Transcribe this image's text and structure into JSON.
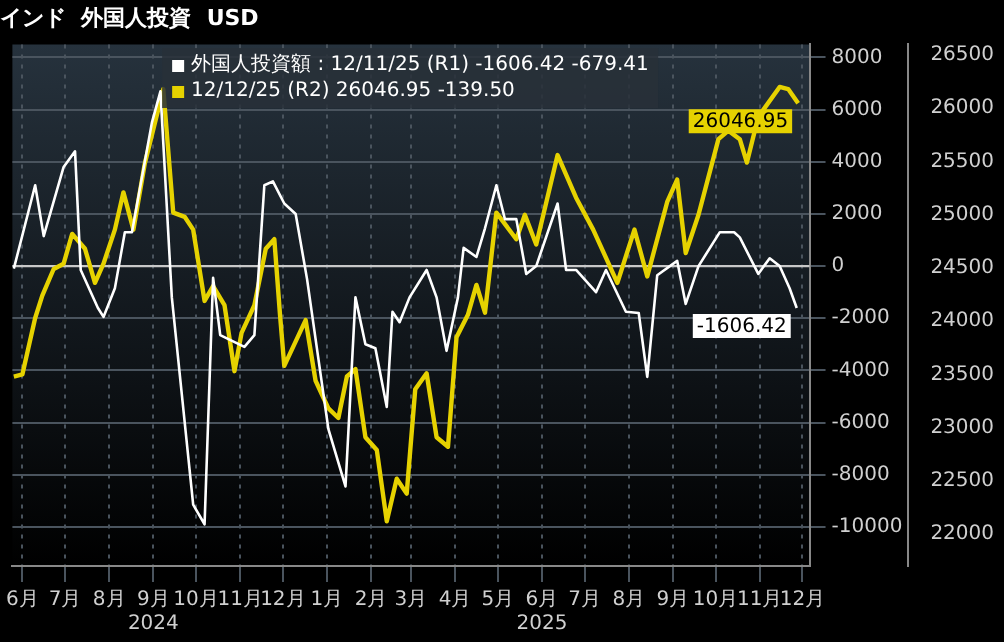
{
  "chart_data": {
    "type": "line",
    "title": "インド  外国人投資  USD",
    "xlim": [
      "2024-06-08",
      "2025-12-20"
    ],
    "xticks": [
      {
        "value": "2024-06-15",
        "label": "6月"
      },
      {
        "value": "2024-07-15",
        "label": "7月"
      },
      {
        "value": "2024-08-15",
        "label": "8月"
      },
      {
        "value": "2024-09-15",
        "label": "9月\n2024"
      },
      {
        "value": "2024-10-15",
        "label": "10月"
      },
      {
        "value": "2024-11-15",
        "label": "11月"
      },
      {
        "value": "2024-12-15",
        "label": "12月"
      },
      {
        "value": "2025-01-15",
        "label": "1月"
      },
      {
        "value": "2025-02-15",
        "label": "2月"
      },
      {
        "value": "2025-03-15",
        "label": "3月"
      },
      {
        "value": "2025-04-15",
        "label": "4月"
      },
      {
        "value": "2025-05-15",
        "label": "5月"
      },
      {
        "value": "2025-06-15",
        "label": "6月\n2025"
      },
      {
        "value": "2025-07-15",
        "label": "7月"
      },
      {
        "value": "2025-08-15",
        "label": "8月"
      },
      {
        "value": "2025-09-15",
        "label": "9月"
      },
      {
        "value": "2025-10-15",
        "label": "10月"
      },
      {
        "value": "2025-11-15",
        "label": "11月"
      },
      {
        "value": "2025-12-15",
        "label": "12月"
      }
    ],
    "ylim": [
      -11500,
      8500
    ],
    "yticks": [
      -10000,
      -8000,
      -6000,
      -4000,
      -2000,
      0,
      2000,
      4000,
      6000,
      8000
    ],
    "y2lim": [
      21700,
      26600
    ],
    "y2ticks": [
      22000,
      22500,
      23000,
      23500,
      24000,
      24500,
      25000,
      25500,
      26000,
      26500
    ],
    "grid": true,
    "legend": "top",
    "ref_lines": [
      {
        "axis": "y",
        "value": 0,
        "color": "#c8c8c8"
      }
    ],
    "series": [
      {
        "name": "外国人投資額 : 12/11/25 (R1) -1606.42 -679.41",
        "color": "#ffffff",
        "axis": "y",
        "x": [
          "2024-06-09",
          "2024-06-24",
          "2024-06-30",
          "2024-07-14",
          "2024-07-22",
          "2024-07-26",
          "2024-08-07",
          "2024-08-11",
          "2024-08-19",
          "2024-08-26",
          "2024-08-31",
          "2024-09-14",
          "2024-09-20",
          "2024-09-28",
          "2024-10-13",
          "2024-10-21",
          "2024-10-27",
          "2024-11-01",
          "2024-11-18",
          "2024-11-25",
          "2024-12-02",
          "2024-12-08",
          "2024-12-16",
          "2024-12-24",
          "2025-01-01",
          "2025-01-16",
          "2025-01-28",
          "2025-02-04",
          "2025-02-11",
          "2025-02-18",
          "2025-02-26",
          "2025-03-02",
          "2025-03-07",
          "2025-03-14",
          "2025-03-26",
          "2025-04-02",
          "2025-04-09",
          "2025-04-17",
          "2025-04-21",
          "2025-04-30",
          "2025-05-06",
          "2025-05-14",
          "2025-05-20",
          "2025-05-28",
          "2025-06-04",
          "2025-06-11",
          "2025-06-26",
          "2025-07-02",
          "2025-07-09",
          "2025-07-23",
          "2025-07-30",
          "2025-08-13",
          "2025-08-22",
          "2025-08-28",
          "2025-09-04",
          "2025-09-18",
          "2025-09-24",
          "2025-10-03",
          "2025-10-18",
          "2025-10-28",
          "2025-11-01",
          "2025-11-14",
          "2025-11-22",
          "2025-11-29",
          "2025-12-06",
          "2025-12-11"
        ],
        "values": [
          -100,
          3100,
          1150,
          3800,
          4400,
          -150,
          -1600,
          -1950,
          -850,
          1300,
          1300,
          5500,
          6700,
          -1200,
          -9150,
          -9900,
          -450,
          -2650,
          -3100,
          -2650,
          3100,
          3250,
          2400,
          2000,
          -500,
          -6250,
          -8450,
          -1200,
          -3000,
          -3150,
          -5400,
          -1750,
          -2150,
          -1200,
          -150,
          -1200,
          -3250,
          -1200,
          700,
          350,
          1450,
          3100,
          1800,
          1800,
          -300,
          0,
          2400,
          -150,
          -150,
          -1000,
          -150,
          -1750,
          -1800,
          -4250,
          -350,
          200,
          -1450,
          0,
          1300,
          1300,
          1100,
          -300,
          300,
          0,
          -850,
          -1606.42
        ],
        "value_labels": [
          null,
          null,
          null,
          null,
          null,
          null,
          null,
          null,
          null,
          null,
          null,
          null,
          null,
          null,
          null,
          null,
          null,
          null,
          null,
          null,
          null,
          null,
          null,
          null,
          null,
          null,
          null,
          null,
          null,
          null,
          null,
          null,
          null,
          null,
          null,
          null,
          null,
          null,
          null,
          null,
          null,
          null,
          null,
          null,
          null,
          null,
          null,
          null,
          null,
          null,
          null,
          null,
          null,
          null,
          null,
          null,
          null,
          null,
          null,
          null,
          null,
          null,
          null,
          null,
          null,
          "-1606.42"
        ]
      },
      {
        "name": "12/12/25 (R2) 26046.95 -139.50",
        "color": "#e6d200",
        "axis": "y2",
        "x": [
          "2024-06-09",
          "2024-06-15",
          "2024-06-24",
          "2024-06-29",
          "2024-07-07",
          "2024-07-14",
          "2024-07-20",
          "2024-07-29",
          "2024-08-05",
          "2024-08-11",
          "2024-08-19",
          "2024-08-25",
          "2024-09-01",
          "2024-09-09",
          "2024-09-22",
          "2024-09-29",
          "2024-10-07",
          "2024-10-13",
          "2024-10-21",
          "2024-10-27",
          "2024-11-04",
          "2024-11-11",
          "2024-11-16",
          "2024-11-25",
          "2024-12-03",
          "2024-12-09",
          "2024-12-13",
          "2024-12-16",
          "2024-12-31",
          "2025-01-07",
          "2025-01-16",
          "2025-01-23",
          "2025-01-29",
          "2025-02-04",
          "2025-02-11",
          "2025-02-19",
          "2025-02-26",
          "2025-03-05",
          "2025-03-12",
          "2025-03-18",
          "2025-03-26",
          "2025-04-02",
          "2025-04-10",
          "2025-04-16",
          "2025-04-24",
          "2025-04-30",
          "2025-05-06",
          "2025-05-14",
          "2025-05-28",
          "2025-06-03",
          "2025-06-11",
          "2025-06-26",
          "2025-07-09",
          "2025-07-21",
          "2025-08-07",
          "2025-08-19",
          "2025-08-28",
          "2025-09-11",
          "2025-09-18",
          "2025-09-24",
          "2025-10-03",
          "2025-10-17",
          "2025-10-24",
          "2025-11-01",
          "2025-11-06",
          "2025-11-14",
          "2025-11-29",
          "2025-12-05",
          "2025-12-12"
        ],
        "values": [
          23480,
          23500,
          24030,
          24240,
          24490,
          24540,
          24820,
          24680,
          24360,
          24540,
          24860,
          25210,
          24860,
          25480,
          26180,
          25020,
          24980,
          24860,
          24190,
          24330,
          24150,
          23530,
          23890,
          24150,
          24680,
          24770,
          24060,
          23580,
          24010,
          23440,
          23180,
          23090,
          23480,
          23550,
          22910,
          22790,
          22120,
          22520,
          22380,
          23360,
          23510,
          22910,
          22820,
          23850,
          24060,
          24340,
          24080,
          25020,
          24770,
          25000,
          24720,
          25560,
          25160,
          24860,
          24360,
          24860,
          24420,
          25120,
          25330,
          24640,
          25000,
          25710,
          25790,
          25710,
          25490,
          25920,
          26200,
          26180,
          26046.95
        ],
        "value_labels": [
          null,
          null,
          null,
          null,
          null,
          null,
          null,
          null,
          null,
          null,
          null,
          null,
          null,
          null,
          null,
          null,
          null,
          null,
          null,
          null,
          null,
          null,
          null,
          null,
          null,
          null,
          null,
          null,
          null,
          null,
          null,
          null,
          null,
          null,
          null,
          null,
          null,
          null,
          null,
          null,
          null,
          null,
          null,
          null,
          null,
          null,
          null,
          null,
          null,
          null,
          null,
          null,
          null,
          null,
          null,
          null,
          null,
          null,
          null,
          null,
          null,
          null,
          null,
          null,
          null,
          null,
          null,
          null,
          "26046.95"
        ]
      }
    ]
  }
}
